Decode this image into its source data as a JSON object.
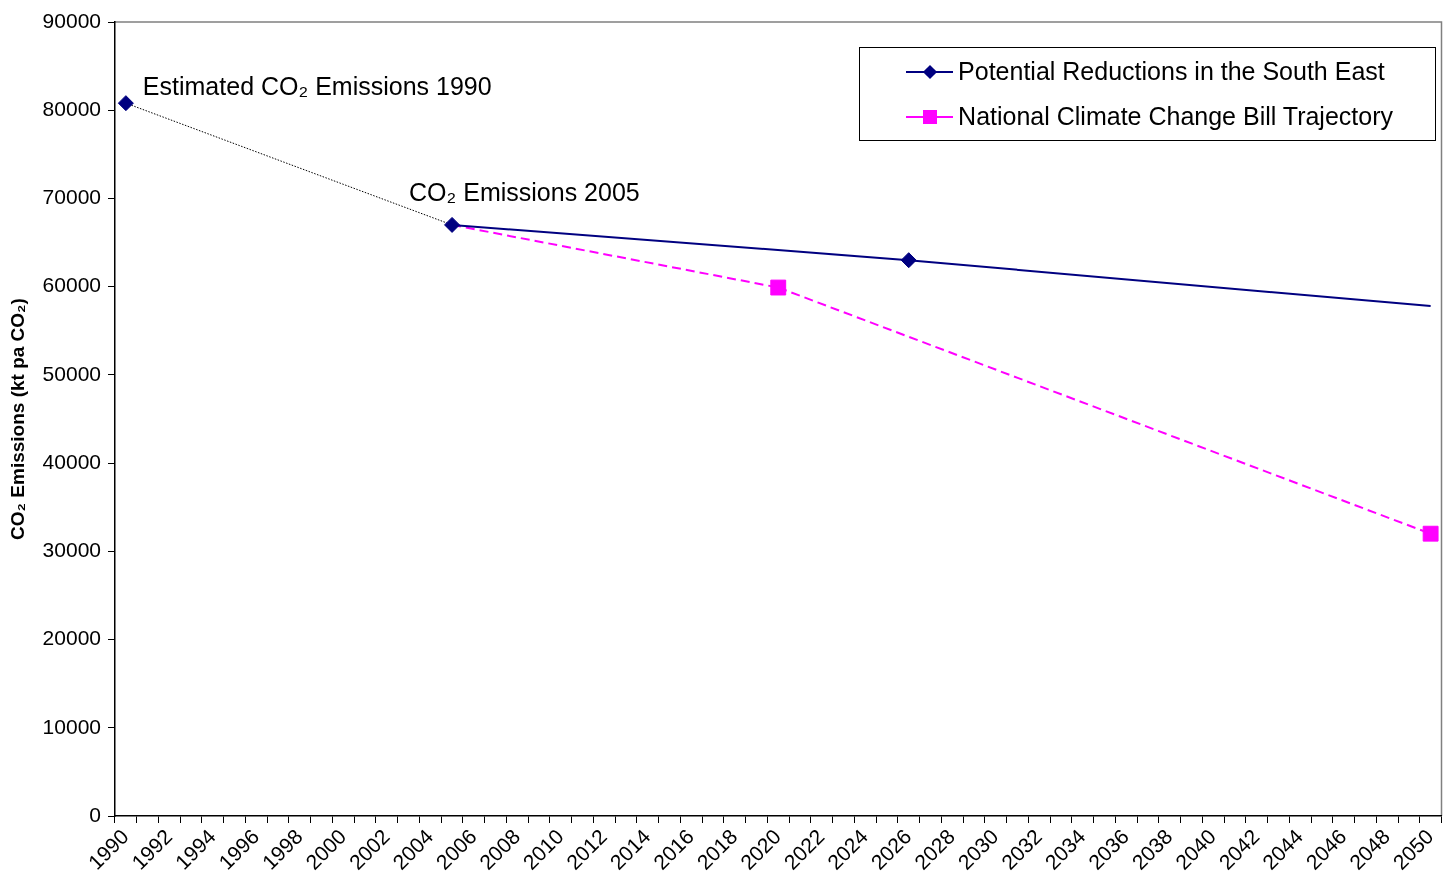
{
  "chart_data": {
    "type": "line",
    "categories": [
      "1990",
      null,
      "1992",
      null,
      "1994",
      null,
      "1996",
      null,
      "1998",
      null,
      "2000",
      null,
      "2002",
      null,
      "2004",
      null,
      "2006",
      null,
      "2008",
      null,
      "2010",
      null,
      "2012",
      null,
      "2014",
      null,
      "2016",
      null,
      "2018",
      null,
      "2020",
      null,
      "2022",
      null,
      "2024",
      null,
      "2026",
      null,
      "2028",
      null,
      "2030",
      null,
      "2032",
      null,
      "2034",
      null,
      "2036",
      null,
      "2038",
      null,
      "2040",
      null,
      "2042",
      null,
      "2044",
      null,
      "2046",
      null,
      "2048",
      null,
      "2050"
    ],
    "ylabel": "CO₂ Emissions (kt pa CO₂)",
    "ylim": [
      0,
      90000
    ],
    "yticks": [
      0,
      10000,
      20000,
      30000,
      40000,
      50000,
      60000,
      70000,
      80000,
      90000
    ],
    "grid": false,
    "legend": "top right",
    "annotations": [
      {
        "text": "Estimated CO₂ Emissions 1990",
        "x": "1990",
        "y": 80800
      },
      {
        "text": "CO₂ Emissions 2005",
        "y": 67000
      }
    ],
    "series": [
      {
        "name": "Potential Reductions in the South East",
        "color": "#000080",
        "marker": "diamond",
        "line_style": "solid",
        "values": [
          null,
          null,
          null,
          null,
          null,
          null,
          null,
          null,
          null,
          null,
          null,
          null,
          null,
          null,
          null,
          67000,
          null,
          null,
          null,
          null,
          null,
          null,
          null,
          null,
          null,
          null,
          null,
          null,
          null,
          null,
          null,
          null,
          null,
          null,
          null,
          null,
          63000,
          null,
          null,
          null,
          null,
          null,
          null,
          null,
          null,
          null,
          null,
          null,
          null,
          null,
          null,
          null,
          null,
          null,
          null,
          null,
          null,
          null,
          null,
          null,
          null
        ]
      },
      {
        "color": "#000080",
        "marker": "none",
        "line_style": "solid",
        "values": [
          null,
          null,
          null,
          null,
          null,
          null,
          null,
          null,
          null,
          null,
          null,
          null,
          null,
          null,
          null,
          null,
          null,
          null,
          null,
          null,
          null,
          null,
          null,
          null,
          null,
          null,
          null,
          null,
          null,
          null,
          null,
          null,
          null,
          null,
          null,
          null,
          63000,
          null,
          null,
          null,
          null,
          null,
          null,
          null,
          null,
          null,
          null,
          null,
          null,
          null,
          null,
          null,
          null,
          null,
          null,
          null,
          null,
          null,
          null,
          null,
          57800
        ]
      },
      {
        "color": "#000080",
        "type": "scatter",
        "marker": "diamond",
        "values": [
          80800,
          null,
          null,
          null,
          null,
          null,
          null,
          null,
          null,
          null,
          null,
          null,
          null,
          null,
          null,
          null,
          null,
          null,
          null,
          null,
          null,
          null,
          null,
          null,
          null,
          null,
          null,
          null,
          null,
          null,
          null,
          null,
          null,
          null,
          null,
          null,
          null,
          null,
          null,
          null,
          null,
          null,
          null,
          null,
          null,
          null,
          null,
          null,
          null,
          null,
          null,
          null,
          null,
          null,
          null,
          null,
          null,
          null,
          null,
          null,
          null
        ]
      },
      {
        "color": "#000000",
        "marker": "none",
        "line_style": "dotted",
        "values": [
          80800,
          null,
          null,
          null,
          null,
          null,
          null,
          null,
          null,
          null,
          null,
          null,
          null,
          null,
          null,
          67000,
          null,
          null,
          null,
          null,
          null,
          null,
          null,
          null,
          null,
          null,
          null,
          null,
          null,
          null,
          null,
          null,
          null,
          null,
          null,
          null,
          null,
          null,
          null,
          null,
          null,
          null,
          null,
          null,
          null,
          null,
          null,
          null,
          null,
          null,
          null,
          null,
          null,
          null,
          null,
          null,
          null,
          null,
          null,
          null,
          null
        ]
      },
      {
        "name": "National Climate Change Bill Trajectory",
        "color": "#ff00ff",
        "marker": "square",
        "line_style": "dashed",
        "values": [
          null,
          null,
          null,
          null,
          null,
          null,
          null,
          null,
          null,
          null,
          null,
          null,
          null,
          null,
          null,
          null,
          null,
          null,
          null,
          null,
          null,
          null,
          null,
          null,
          null,
          null,
          null,
          null,
          null,
          null,
          59900,
          null,
          null,
          null,
          null,
          null,
          null,
          null,
          null,
          null,
          null,
          null,
          null,
          null,
          null,
          null,
          null,
          null,
          null,
          null,
          null,
          null,
          null,
          null,
          null,
          null,
          null,
          null,
          null,
          null,
          32000
        ]
      },
      {
        "color": "#ff00ff",
        "marker": "none",
        "line_style": "dashed",
        "values": [
          null,
          null,
          null,
          null,
          null,
          null,
          null,
          null,
          null,
          null,
          null,
          null,
          null,
          null,
          null,
          67000,
          null,
          null,
          null,
          null,
          null,
          null,
          null,
          null,
          null,
          null,
          null,
          null,
          null,
          null,
          59900,
          null,
          null,
          null,
          null,
          null,
          null,
          null,
          null,
          null,
          null,
          null,
          null,
          null,
          null,
          null,
          null,
          null,
          null,
          null,
          null,
          null,
          null,
          null,
          null,
          null,
          null,
          null,
          null,
          null,
          null
        ]
      }
    ]
  }
}
